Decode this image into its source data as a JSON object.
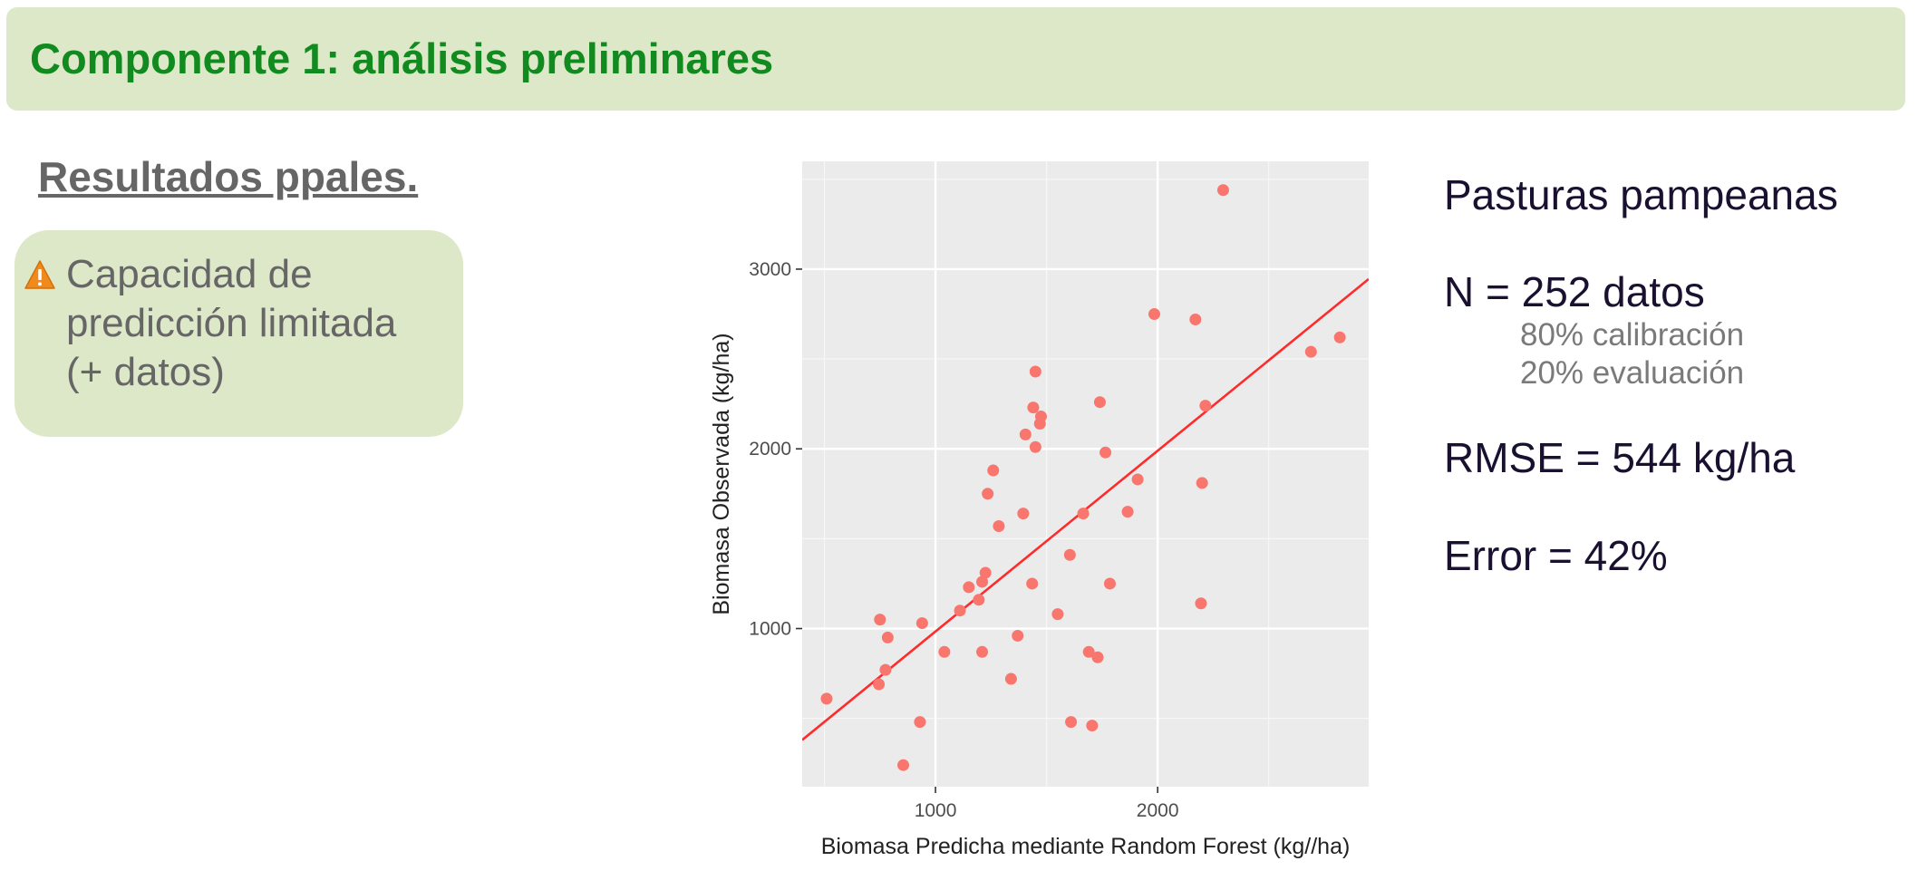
{
  "header": {
    "title": "Componente 1: análisis preliminares"
  },
  "section": {
    "title": "Resultados ppales."
  },
  "callout": {
    "icon": "warning-icon",
    "lines": [
      "Capacidad de",
      "predicción limitada",
      "(+ datos)"
    ]
  },
  "stats": {
    "dataset": "Pasturas pampeanas",
    "n": "N = 252 datos",
    "calibration": "80% calibración",
    "evaluation": "20% evaluación",
    "rmse": "RMSE = 544 kg/ha",
    "error": "Error = 42%"
  },
  "colors": {
    "header_bg": "#dde8c8",
    "header_text": "#118a1f",
    "panel_bg": "#ebebeb",
    "point": "#f8766d",
    "line": "#ff2a2a"
  },
  "chart_data": {
    "type": "scatter",
    "title": "",
    "xlabel": "Biomasa Predicha mediante Random Forest (kg//ha)",
    "ylabel": "Biomasa Observada (kg/ha)",
    "xlim": [
      400,
      2950
    ],
    "ylim": [
      120,
      3600
    ],
    "xticks": [
      1000,
      2000
    ],
    "yticks": [
      1000,
      2000,
      3000
    ],
    "xtick_labels": [
      "1000",
      "2000"
    ],
    "ytick_labels": [
      "1000",
      "2000",
      "3000"
    ],
    "grid": true,
    "legend": "none",
    "fit_line": {
      "x": [
        400,
        2950
      ],
      "y": [
        380,
        2945
      ]
    },
    "points": [
      {
        "x": 510,
        "y": 610
      },
      {
        "x": 745,
        "y": 690
      },
      {
        "x": 775,
        "y": 770
      },
      {
        "x": 750,
        "y": 1050
      },
      {
        "x": 785,
        "y": 950
      },
      {
        "x": 855,
        "y": 240
      },
      {
        "x": 930,
        "y": 480
      },
      {
        "x": 940,
        "y": 1030
      },
      {
        "x": 1040,
        "y": 870
      },
      {
        "x": 1110,
        "y": 1100
      },
      {
        "x": 1150,
        "y": 1230
      },
      {
        "x": 1195,
        "y": 1160
      },
      {
        "x": 1210,
        "y": 870
      },
      {
        "x": 1210,
        "y": 1260
      },
      {
        "x": 1225,
        "y": 1310
      },
      {
        "x": 1235,
        "y": 1750
      },
      {
        "x": 1260,
        "y": 1880
      },
      {
        "x": 1285,
        "y": 1570
      },
      {
        "x": 1340,
        "y": 720
      },
      {
        "x": 1370,
        "y": 960
      },
      {
        "x": 1395,
        "y": 1640
      },
      {
        "x": 1405,
        "y": 2080
      },
      {
        "x": 1435,
        "y": 1250
      },
      {
        "x": 1440,
        "y": 2230
      },
      {
        "x": 1450,
        "y": 2430
      },
      {
        "x": 1450,
        "y": 2010
      },
      {
        "x": 1470,
        "y": 2140
      },
      {
        "x": 1475,
        "y": 2180
      },
      {
        "x": 1550,
        "y": 1080
      },
      {
        "x": 1605,
        "y": 1410
      },
      {
        "x": 1610,
        "y": 480
      },
      {
        "x": 1665,
        "y": 1640
      },
      {
        "x": 1690,
        "y": 870
      },
      {
        "x": 1705,
        "y": 460
      },
      {
        "x": 1730,
        "y": 840
      },
      {
        "x": 1740,
        "y": 2260
      },
      {
        "x": 1765,
        "y": 1980
      },
      {
        "x": 1785,
        "y": 1250
      },
      {
        "x": 1865,
        "y": 1650
      },
      {
        "x": 1910,
        "y": 1830
      },
      {
        "x": 1985,
        "y": 2750
      },
      {
        "x": 2170,
        "y": 2720
      },
      {
        "x": 2195,
        "y": 1140
      },
      {
        "x": 2200,
        "y": 1810
      },
      {
        "x": 2215,
        "y": 2240
      },
      {
        "x": 2295,
        "y": 3440
      },
      {
        "x": 2690,
        "y": 2540
      },
      {
        "x": 2820,
        "y": 2620
      }
    ]
  }
}
